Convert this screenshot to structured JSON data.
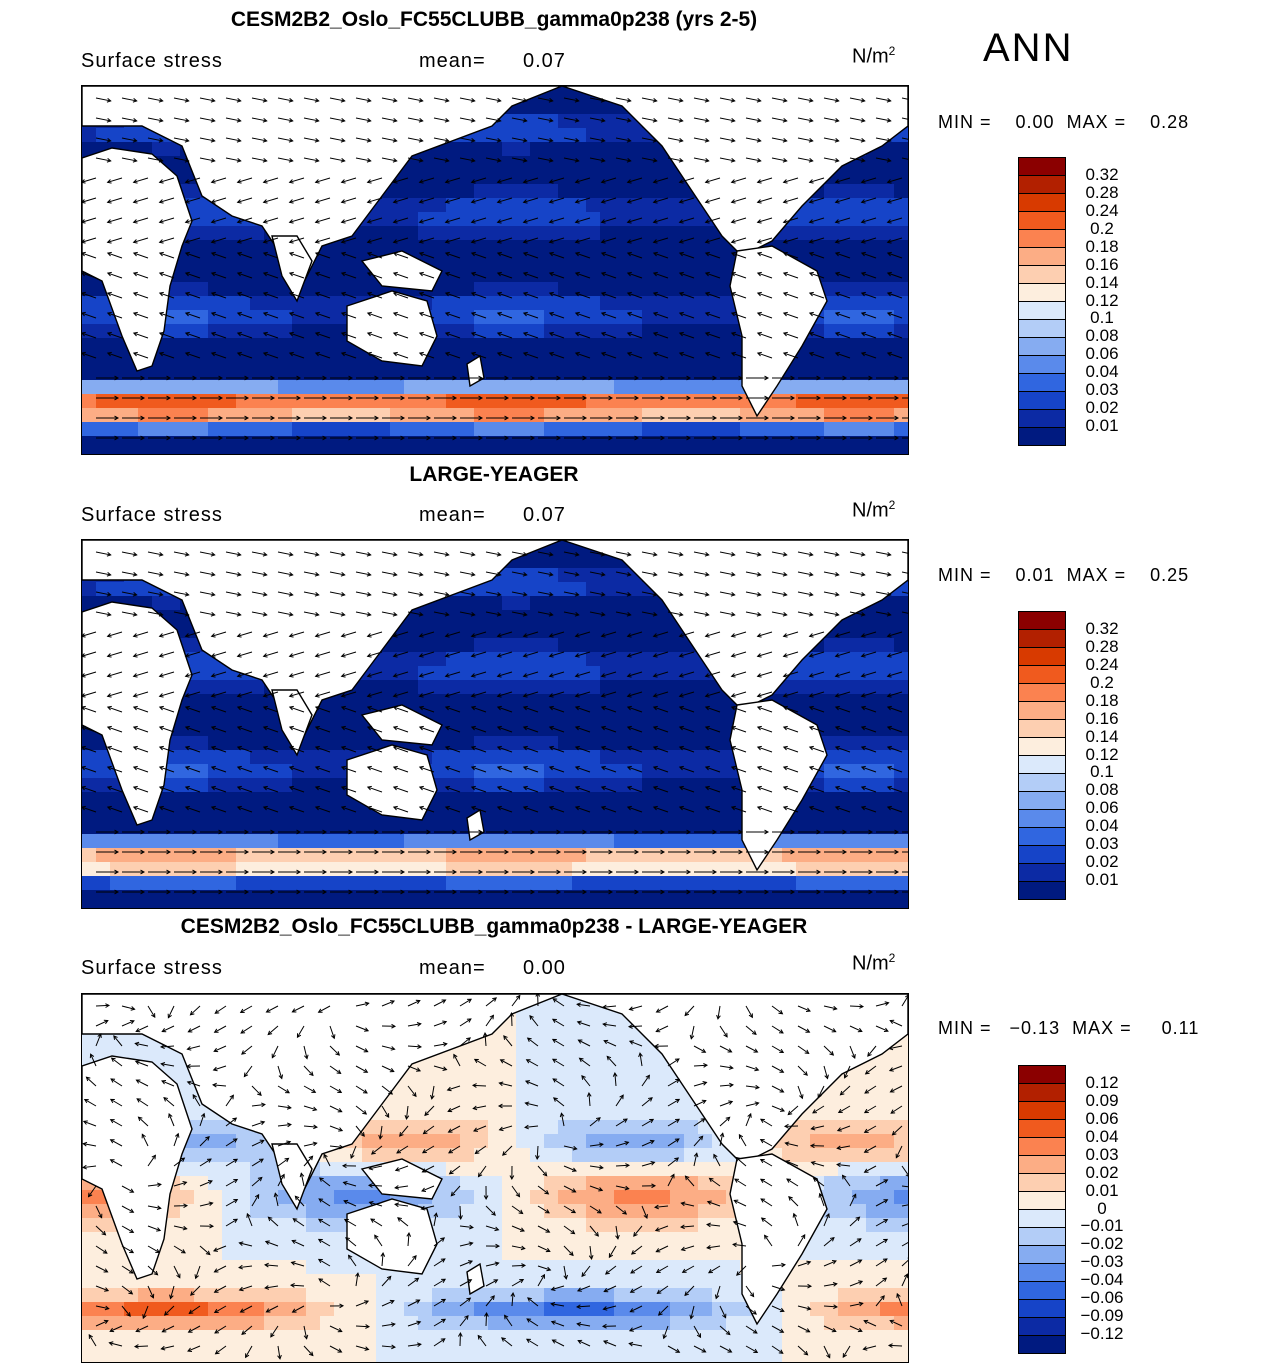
{
  "season": "ANN",
  "units_base": "N/m",
  "units_exp": "2",
  "panels": [
    {
      "title": "CESM2B2_Oslo_FC55CLUBB_gamma0p238 (yrs 2-5)",
      "variable": "Surface stress",
      "mean_label": "mean=",
      "mean_value": "0.07",
      "min_label": "MIN =",
      "min_value": "0.00",
      "max_label": "MAX =",
      "max_value": "0.28",
      "colorbar": {
        "ticks": [
          "0.32",
          "0.28",
          "0.24",
          "0.2",
          "0.18",
          "0.16",
          "0.14",
          "0.12",
          "0.1",
          "0.08",
          "0.06",
          "0.04",
          "0.03",
          "0.02",
          "0.01"
        ],
        "colors": [
          "#8b0000",
          "#b22000",
          "#d83a00",
          "#f05a1e",
          "#fb8250",
          "#fcad85",
          "#fdcfb1",
          "#fdeede",
          "#dbe9fb",
          "#b3cdf7",
          "#86acf1",
          "#5a8aeb",
          "#3066e0",
          "#1644c8",
          "#0c2aa4",
          "#001a80"
        ]
      }
    },
    {
      "title": "LARGE-YEAGER",
      "variable": "Surface stress",
      "mean_label": "mean=",
      "mean_value": "0.07",
      "min_label": "MIN =",
      "min_value": "0.01",
      "max_label": "MAX =",
      "max_value": "0.25",
      "colorbar": {
        "ticks": [
          "0.32",
          "0.28",
          "0.24",
          "0.2",
          "0.18",
          "0.16",
          "0.14",
          "0.12",
          "0.1",
          "0.08",
          "0.06",
          "0.04",
          "0.03",
          "0.02",
          "0.01"
        ],
        "colors": [
          "#8b0000",
          "#b22000",
          "#d83a00",
          "#f05a1e",
          "#fb8250",
          "#fcad85",
          "#fdcfb1",
          "#fdeede",
          "#dbe9fb",
          "#b3cdf7",
          "#86acf1",
          "#5a8aeb",
          "#3066e0",
          "#1644c8",
          "#0c2aa4",
          "#001a80"
        ]
      }
    },
    {
      "title": "CESM2B2_Oslo_FC55CLUBB_gamma0p238 - LARGE-YEAGER",
      "variable": "Surface stress",
      "mean_label": "mean=",
      "mean_value": "0.00",
      "min_label": "MIN =",
      "min_value": "−0.13",
      "max_label": "MAX =",
      "max_value": "0.11",
      "colorbar": {
        "ticks": [
          "0.12",
          "0.09",
          "0.06",
          "0.04",
          "0.03",
          "0.02",
          "0.01",
          "0",
          "−0.01",
          "−0.02",
          "−0.03",
          "−0.04",
          "−0.06",
          "−0.09",
          "−0.12"
        ],
        "colors": [
          "#8b0000",
          "#b22000",
          "#d83a00",
          "#f05a1e",
          "#fb8250",
          "#fcad85",
          "#fdcfb1",
          "#fdeede",
          "#dbe9fb",
          "#b3cdf7",
          "#86acf1",
          "#5a8aeb",
          "#3066e0",
          "#1644c8",
          "#0c2aa4",
          "#001a80"
        ]
      }
    }
  ]
}
